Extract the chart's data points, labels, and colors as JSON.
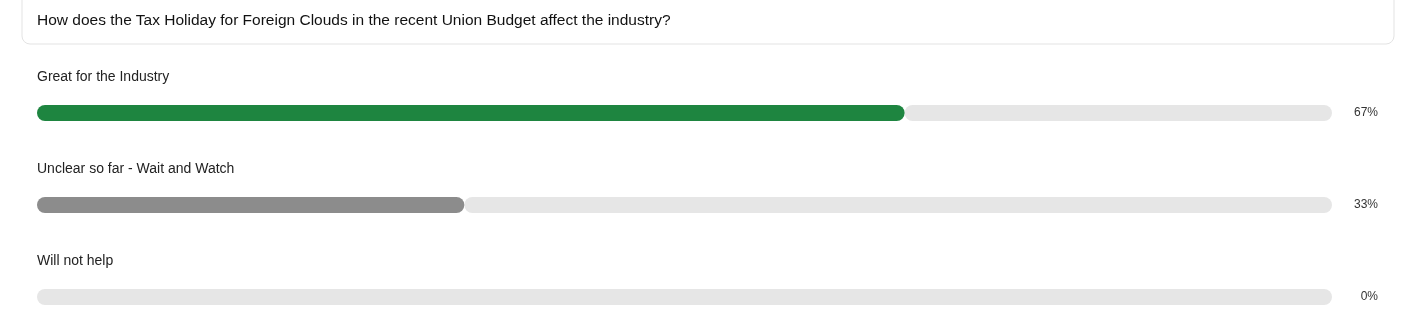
{
  "chart_data": {
    "type": "bar",
    "orientation": "horizontal",
    "stacked": true,
    "title": "How does the Tax Holiday for Foreign Clouds in the recent Union Budget affect the industry?",
    "categories": [
      "Great for the Industry",
      "Unclear so far - Wait and Watch",
      "Will not help"
    ],
    "series": [
      {
        "colors": [
          "#1e8540",
          "#8c8c8c",
          null
        ],
        "values": [
          67,
          33,
          0
        ],
        "value_labels": [
          "67%",
          "33%",
          "0%"
        ]
      },
      {
        "color": "#e6e6e6",
        "values": [
          33,
          67,
          100
        ]
      }
    ],
    "xlim": [
      0,
      100
    ]
  }
}
